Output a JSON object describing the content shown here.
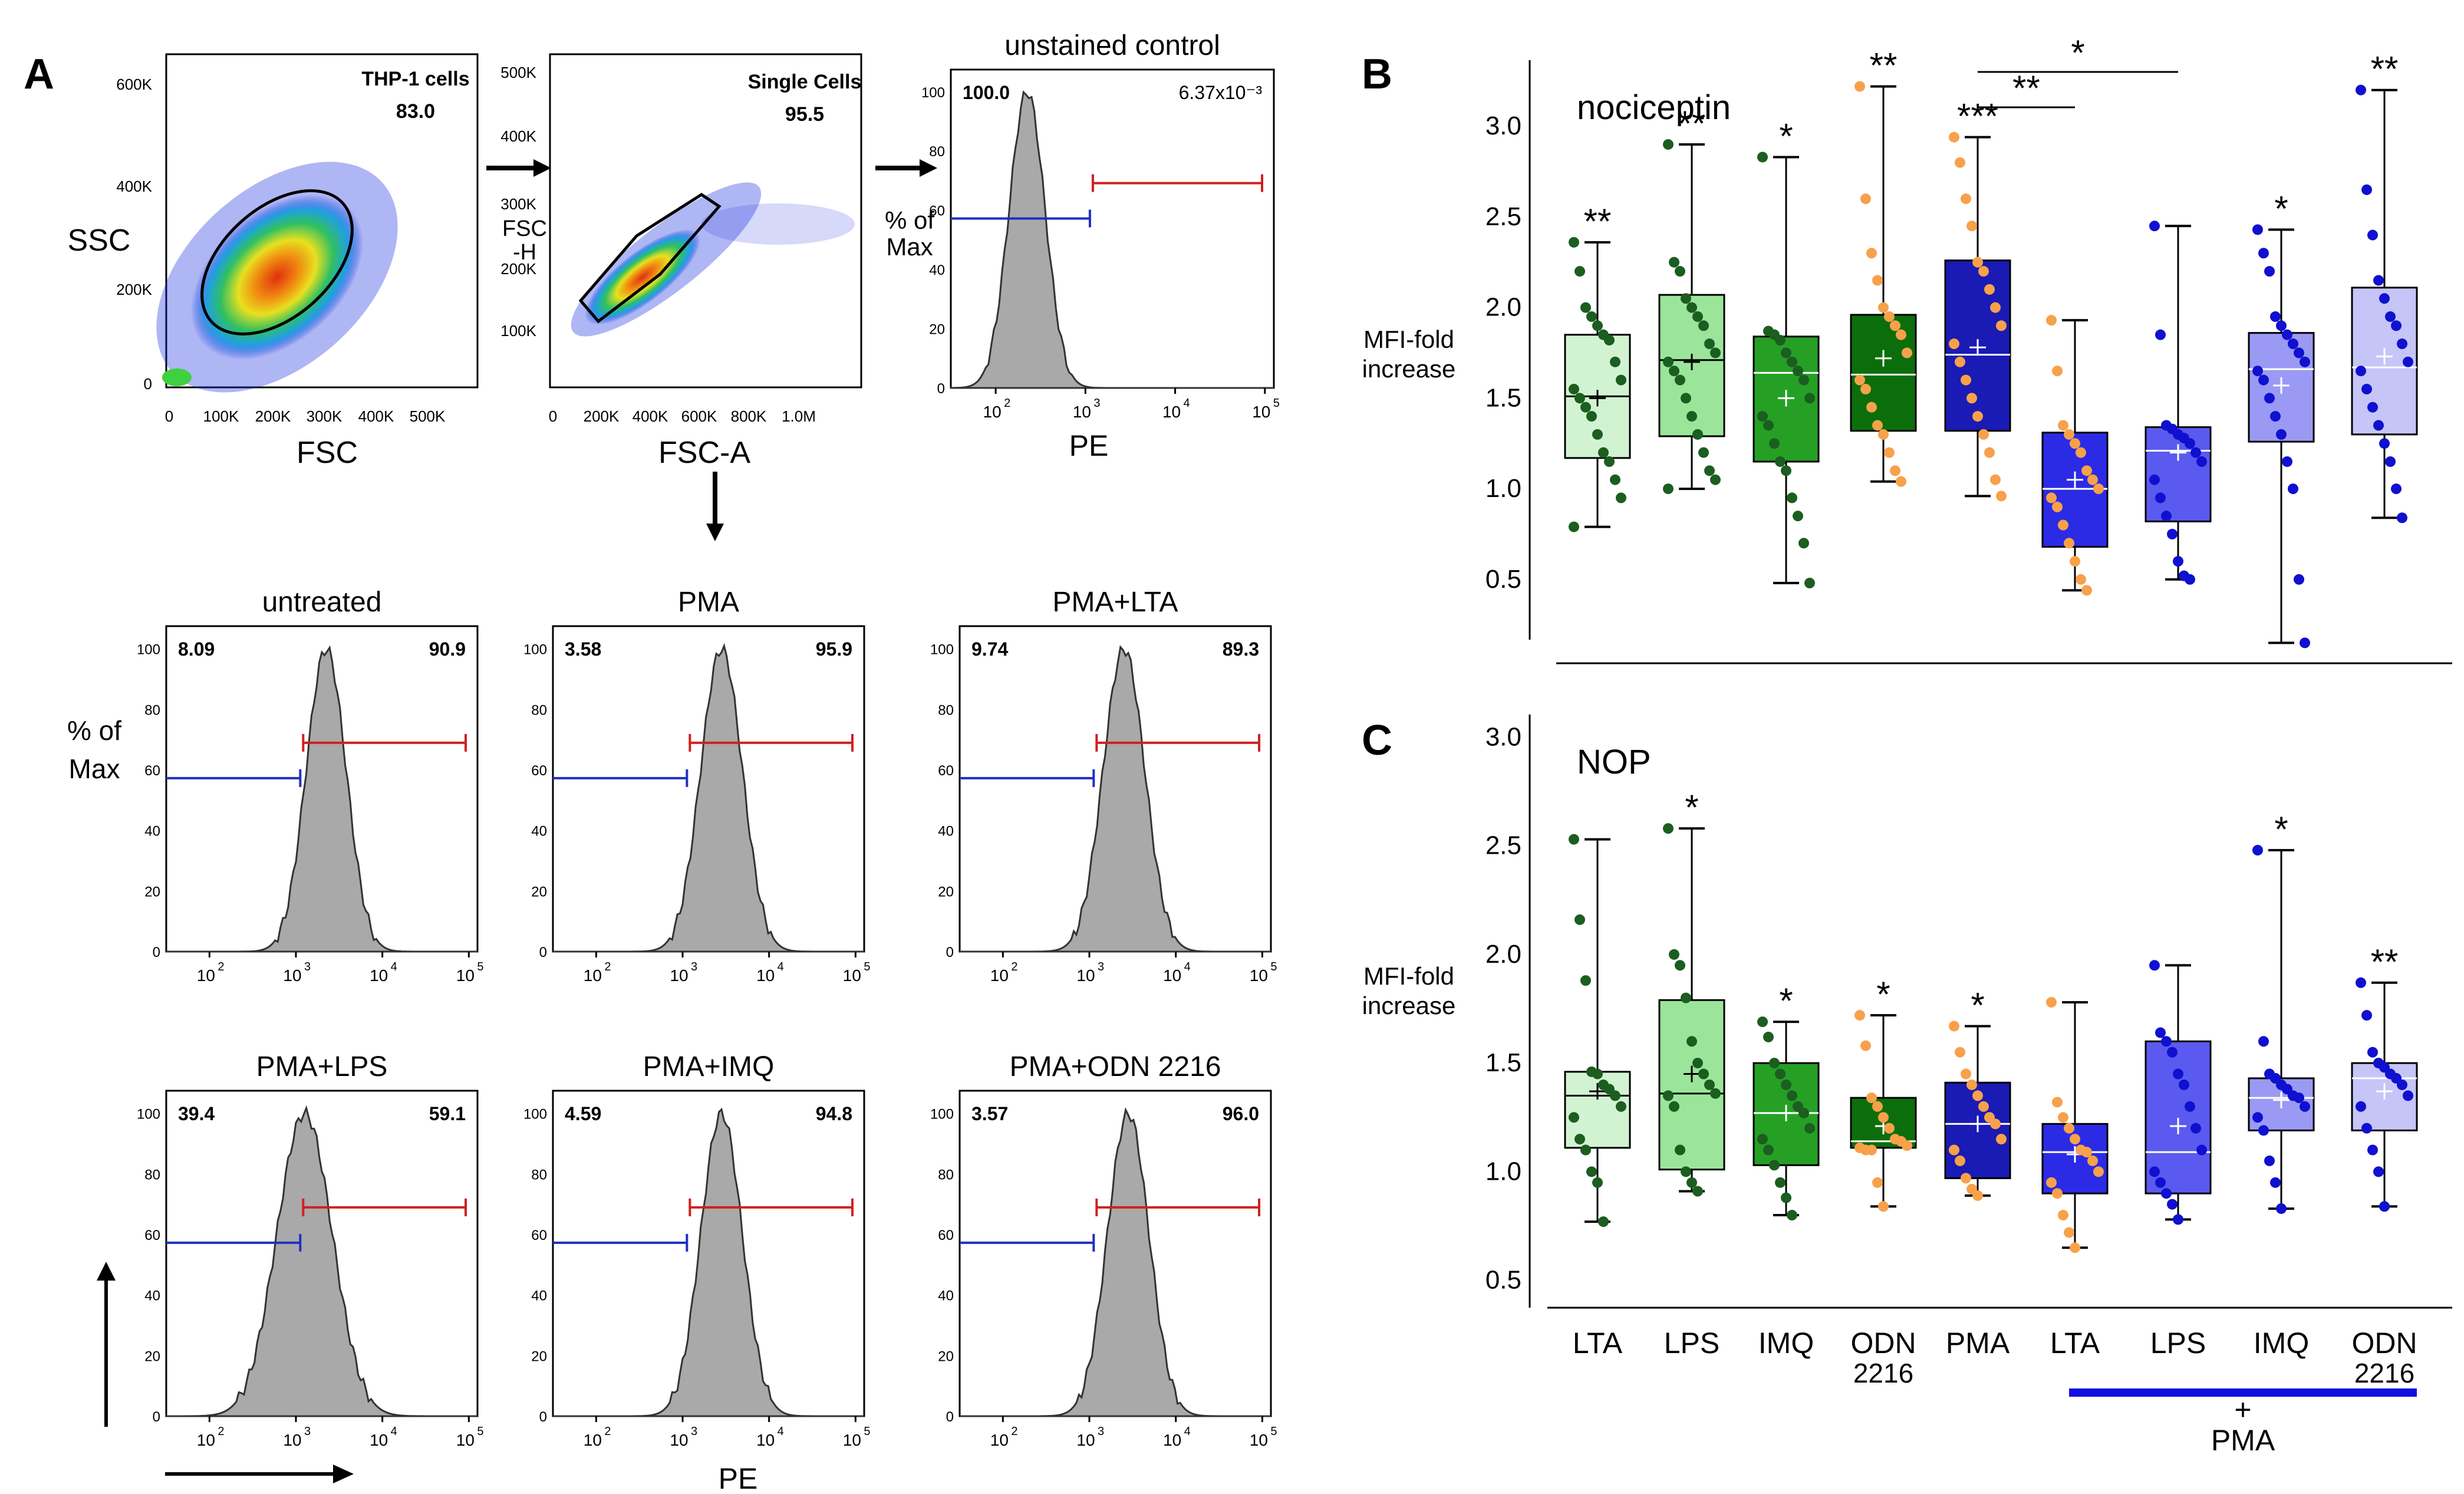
{
  "panel_labels": {
    "A": "A",
    "B": "B",
    "C": "C"
  },
  "common": {
    "pe": "PE",
    "pct_max": [
      "% of",
      "Max"
    ],
    "pct_ticks": [
      "0",
      "20",
      "40",
      "60",
      "80",
      "100"
    ]
  },
  "scatter_plots": [
    {
      "xlabel": "FSC",
      "ylabel": "SSC",
      "gate_name": "THP-1 cells",
      "gate_pct": "83.0",
      "xticks": [
        "0",
        "100K",
        "200K",
        "300K",
        "400K",
        "500K"
      ],
      "yticks": [
        "0",
        "200K",
        "400K",
        "600K"
      ]
    },
    {
      "xlabel": "FSC-A",
      "ylabel": [
        "FSC",
        "-H"
      ],
      "gate_name": "Single Cells",
      "gate_pct": "95.5",
      "xticks": [
        "0",
        "200K",
        "400K",
        "600K",
        "800K",
        "1.0M"
      ],
      "yticks": [
        "100K",
        "200K",
        "300K",
        "400K",
        "500K"
      ]
    }
  ],
  "histograms": [
    {
      "title": "unstained control",
      "left_pct": "100.0",
      "right_pct": "6.37x10⁻³",
      "peak": 2.35,
      "width": 0.2,
      "xlabel": "PE"
    },
    {
      "title": "untreated",
      "left_pct": "8.09",
      "right_pct": "90.9",
      "peak": 3.35,
      "width": 0.23,
      "xlabel": ""
    },
    {
      "title": "PMA",
      "left_pct": "3.58",
      "right_pct": "95.9",
      "peak": 3.45,
      "width": 0.24,
      "xlabel": ""
    },
    {
      "title": "PMA+LTA",
      "left_pct": "9.74",
      "right_pct": "89.3",
      "peak": 3.4,
      "width": 0.24,
      "xlabel": ""
    },
    {
      "title": "PMA+LPS",
      "left_pct": "39.4",
      "right_pct": "59.1",
      "peak": 3.1,
      "width": 0.32,
      "xlabel": ""
    },
    {
      "title": "PMA+IMQ",
      "left_pct": "4.59",
      "right_pct": "94.8",
      "peak": 3.45,
      "width": 0.24,
      "xlabel": "PE"
    },
    {
      "title": "PMA+ODN 2216",
      "left_pct": "3.57",
      "right_pct": "96.0",
      "peak": 3.45,
      "width": 0.24,
      "xlabel": ""
    }
  ],
  "hist_xticks": [
    "10",
    "10",
    "10",
    "10"
  ],
  "hist_xtick_exps": [
    "2",
    "3",
    "4",
    "5"
  ],
  "chart_data": [
    {
      "type": "box",
      "panel": "B",
      "title": "nociceptin",
      "ylabel": [
        "MFI-fold",
        "increase"
      ],
      "ylim": [
        0.2,
        3.3
      ],
      "yticks": [
        "0.5",
        "1.0",
        "1.5",
        "2.0",
        "2.5",
        "3.0"
      ],
      "categories": [
        "LTA",
        "LPS",
        "IMQ",
        "ODN 2216",
        "PMA",
        "LTA",
        "LPS",
        "IMQ",
        "ODN 2216"
      ],
      "colors": [
        "#d2f3d2",
        "#9be59b",
        "#25a025",
        "#0b6e0b",
        "#1a1ab5",
        "#2b2be6",
        "#5a5af0",
        "#9a9af5",
        "#c5c5f7"
      ],
      "dot_colors": [
        "#1b5e20",
        "#1b5e20",
        "#1b5e20",
        "#f7a14a",
        "#f7a14a",
        "#f7a14a",
        "#1010d0",
        "#1010d0",
        "#1010d0"
      ],
      "series": [
        {
          "name": "LTA",
          "whisker_low": 0.79,
          "q1": 1.17,
          "median": 1.51,
          "q3": 1.85,
          "whisker_high": 2.36,
          "mean": 1.5,
          "sig": "**",
          "points": [
            2.36,
            2.2,
            2.0,
            1.95,
            1.9,
            1.85,
            1.82,
            1.7,
            1.6,
            1.55,
            1.5,
            1.45,
            1.4,
            1.3,
            1.2,
            1.15,
            1.05,
            0.95,
            0.79
          ]
        },
        {
          "name": "LPS",
          "whisker_low": 1.0,
          "q1": 1.29,
          "median": 1.71,
          "q3": 2.07,
          "whisker_high": 2.9,
          "mean": 1.7,
          "sig": "**",
          "points": [
            2.9,
            2.25,
            2.2,
            2.05,
            2.0,
            1.95,
            1.9,
            1.8,
            1.75,
            1.7,
            1.65,
            1.6,
            1.5,
            1.4,
            1.3,
            1.2,
            1.1,
            1.05,
            1.0
          ]
        },
        {
          "name": "IMQ",
          "whisker_low": 0.48,
          "q1": 1.15,
          "median": 1.64,
          "q3": 1.84,
          "whisker_high": 2.83,
          "mean": 1.5,
          "sig": "*",
          "points": [
            2.83,
            1.87,
            1.85,
            1.82,
            1.75,
            1.7,
            1.65,
            1.6,
            1.5,
            1.4,
            1.35,
            1.25,
            1.15,
            1.1,
            0.95,
            0.85,
            0.7,
            0.48
          ]
        },
        {
          "name": "ODN 2216",
          "whisker_low": 1.04,
          "q1": 1.32,
          "median": 1.63,
          "q3": 1.96,
          "whisker_high": 3.22,
          "mean": 1.72,
          "sig": "**",
          "points": [
            3.22,
            2.6,
            2.3,
            2.15,
            2.0,
            1.95,
            1.9,
            1.85,
            1.75,
            1.6,
            1.55,
            1.45,
            1.35,
            1.3,
            1.2,
            1.1,
            1.04
          ]
        },
        {
          "name": "PMA",
          "whisker_low": 0.96,
          "q1": 1.32,
          "median": 1.74,
          "q3": 2.26,
          "whisker_high": 2.94,
          "mean": 1.78,
          "sig": "***",
          "points": [
            2.94,
            2.8,
            2.6,
            2.45,
            2.25,
            2.2,
            2.1,
            2.0,
            1.9,
            1.8,
            1.7,
            1.6,
            1.5,
            1.4,
            1.3,
            1.2,
            1.05,
            0.96
          ]
        },
        {
          "name": "PMA+LTA",
          "whisker_low": 0.44,
          "q1": 0.68,
          "median": 1.0,
          "q3": 1.31,
          "whisker_high": 1.93,
          "mean": 1.05,
          "sig": "",
          "points": [
            1.93,
            1.65,
            1.35,
            1.3,
            1.25,
            1.2,
            1.1,
            1.05,
            1.0,
            0.95,
            0.9,
            0.8,
            0.7,
            0.6,
            0.5,
            0.44
          ]
        },
        {
          "name": "PMA+LPS",
          "whisker_low": 0.5,
          "q1": 0.82,
          "median": 1.21,
          "q3": 1.34,
          "whisker_high": 2.45,
          "mean": 1.2,
          "sig": "",
          "points": [
            2.45,
            1.85,
            1.35,
            1.33,
            1.3,
            1.28,
            1.25,
            1.2,
            1.15,
            1.05,
            0.95,
            0.85,
            0.75,
            0.6,
            0.52,
            0.5
          ]
        },
        {
          "name": "PMA+IMQ",
          "whisker_low": 0.15,
          "q1": 1.26,
          "median": 1.66,
          "q3": 1.86,
          "whisker_high": 2.43,
          "mean": 1.57,
          "sig": "*",
          "points": [
            2.43,
            2.3,
            2.2,
            1.95,
            1.9,
            1.85,
            1.8,
            1.75,
            1.7,
            1.65,
            1.6,
            1.5,
            1.4,
            1.3,
            1.15,
            1.0,
            0.5,
            0.15
          ]
        },
        {
          "name": "PMA+ODN 2216",
          "whisker_low": 0.84,
          "q1": 1.3,
          "median": 1.67,
          "q3": 2.11,
          "whisker_high": 3.2,
          "mean": 1.73,
          "sig": "**",
          "points": [
            3.2,
            2.65,
            2.4,
            2.15,
            2.05,
            1.95,
            1.9,
            1.8,
            1.7,
            1.65,
            1.55,
            1.45,
            1.35,
            1.25,
            1.15,
            1.0,
            0.84
          ]
        }
      ],
      "brackets": [
        {
          "from": 4,
          "to": 5,
          "label": "**"
        },
        {
          "from": 4,
          "to": 6,
          "label": "*"
        }
      ]
    },
    {
      "type": "box",
      "panel": "C",
      "title": "NOP",
      "ylabel": [
        "MFI-fold",
        "increase"
      ],
      "ylim": [
        0.45,
        3.05
      ],
      "yticks": [
        "0.5",
        "1.0",
        "1.5",
        "2.0",
        "2.5",
        "3.0"
      ],
      "categories": [
        "LTA",
        "LPS",
        "IMQ",
        "ODN 2216",
        "PMA",
        "LTA",
        "LPS",
        "IMQ",
        "ODN 2216"
      ],
      "colors": [
        "#d2f3d2",
        "#9be59b",
        "#25a025",
        "#0b6e0b",
        "#1a1ab5",
        "#2b2be6",
        "#5a5af0",
        "#9a9af5",
        "#c5c5f7"
      ],
      "dot_colors": [
        "#1b5e20",
        "#1b5e20",
        "#1b5e20",
        "#f7a14a",
        "#f7a14a",
        "#f7a14a",
        "#1010d0",
        "#1010d0",
        "#1010d0"
      ],
      "series": [
        {
          "name": "LTA",
          "whisker_low": 0.77,
          "q1": 1.11,
          "median": 1.35,
          "q3": 1.46,
          "whisker_high": 2.53,
          "mean": 1.37,
          "sig": "",
          "points": [
            2.53,
            2.16,
            1.88,
            1.46,
            1.45,
            1.4,
            1.38,
            1.35,
            1.3,
            1.25,
            1.15,
            1.1,
            1.0,
            0.95,
            0.77
          ]
        },
        {
          "name": "LPS",
          "whisker_low": 0.91,
          "q1": 1.01,
          "median": 1.36,
          "q3": 1.79,
          "whisker_high": 2.58,
          "mean": 1.45,
          "sig": "*",
          "points": [
            2.58,
            2.0,
            1.95,
            1.8,
            1.6,
            1.5,
            1.45,
            1.4,
            1.36,
            1.35,
            1.3,
            1.1,
            1.0,
            0.95,
            0.91
          ]
        },
        {
          "name": "IMQ",
          "whisker_low": 0.8,
          "q1": 1.03,
          "median": 1.27,
          "q3": 1.5,
          "whisker_high": 1.69,
          "mean": 1.27,
          "sig": "*",
          "points": [
            1.69,
            1.62,
            1.5,
            1.45,
            1.4,
            1.35,
            1.3,
            1.27,
            1.2,
            1.15,
            1.1,
            1.03,
            0.95,
            0.88,
            0.8
          ]
        },
        {
          "name": "ODN 2216",
          "whisker_low": 0.84,
          "q1": 1.11,
          "median": 1.14,
          "q3": 1.34,
          "whisker_high": 1.72,
          "mean": 1.21,
          "sig": "*",
          "points": [
            1.72,
            1.58,
            1.34,
            1.3,
            1.25,
            1.2,
            1.15,
            1.14,
            1.12,
            1.11,
            1.1,
            1.1,
            0.95,
            0.84
          ]
        },
        {
          "name": "PMA",
          "whisker_low": 0.89,
          "q1": 0.97,
          "median": 1.22,
          "q3": 1.41,
          "whisker_high": 1.67,
          "mean": 1.22,
          "sig": "*",
          "points": [
            1.67,
            1.55,
            1.45,
            1.4,
            1.35,
            1.3,
            1.25,
            1.22,
            1.15,
            1.1,
            1.05,
            0.97,
            0.92,
            0.89
          ]
        },
        {
          "name": "PMA+LTA",
          "whisker_low": 0.65,
          "q1": 0.9,
          "median": 1.09,
          "q3": 1.22,
          "whisker_high": 1.78,
          "mean": 1.08,
          "sig": "",
          "points": [
            1.78,
            1.32,
            1.25,
            1.2,
            1.15,
            1.1,
            1.09,
            1.05,
            1.0,
            0.95,
            0.9,
            0.8,
            0.72,
            0.65
          ]
        },
        {
          "name": "PMA+LPS",
          "whisker_low": 0.78,
          "q1": 0.9,
          "median": 1.09,
          "q3": 1.6,
          "whisker_high": 1.95,
          "mean": 1.21,
          "sig": "",
          "points": [
            1.95,
            1.64,
            1.6,
            1.55,
            1.45,
            1.4,
            1.3,
            1.2,
            1.1,
            1.0,
            0.95,
            0.9,
            0.85,
            0.78
          ]
        },
        {
          "name": "PMA+IMQ",
          "whisker_low": 0.83,
          "q1": 1.19,
          "median": 1.34,
          "q3": 1.43,
          "whisker_high": 2.48,
          "mean": 1.33,
          "sig": "*",
          "points": [
            2.48,
            1.6,
            1.45,
            1.43,
            1.4,
            1.38,
            1.35,
            1.34,
            1.3,
            1.25,
            1.19,
            1.05,
            0.95,
            0.83
          ]
        },
        {
          "name": "PMA+ODN 2216",
          "whisker_low": 0.84,
          "q1": 1.19,
          "median": 1.43,
          "q3": 1.5,
          "whisker_high": 1.87,
          "mean": 1.37,
          "sig": "**",
          "points": [
            1.87,
            1.72,
            1.55,
            1.5,
            1.48,
            1.45,
            1.43,
            1.4,
            1.35,
            1.3,
            1.2,
            1.1,
            1.0,
            0.84
          ]
        }
      ],
      "brackets": []
    }
  ],
  "x_labels": [
    [
      "LTA"
    ],
    [
      "LPS"
    ],
    [
      "IMQ"
    ],
    [
      "ODN",
      "2216"
    ],
    [
      "PMA"
    ],
    [
      "LTA"
    ],
    [
      "LPS"
    ],
    [
      "IMQ"
    ],
    [
      "ODN",
      "2216"
    ]
  ],
  "pma_group": {
    "plus": "+",
    "label": "PMA",
    "color": "#1010e0"
  }
}
